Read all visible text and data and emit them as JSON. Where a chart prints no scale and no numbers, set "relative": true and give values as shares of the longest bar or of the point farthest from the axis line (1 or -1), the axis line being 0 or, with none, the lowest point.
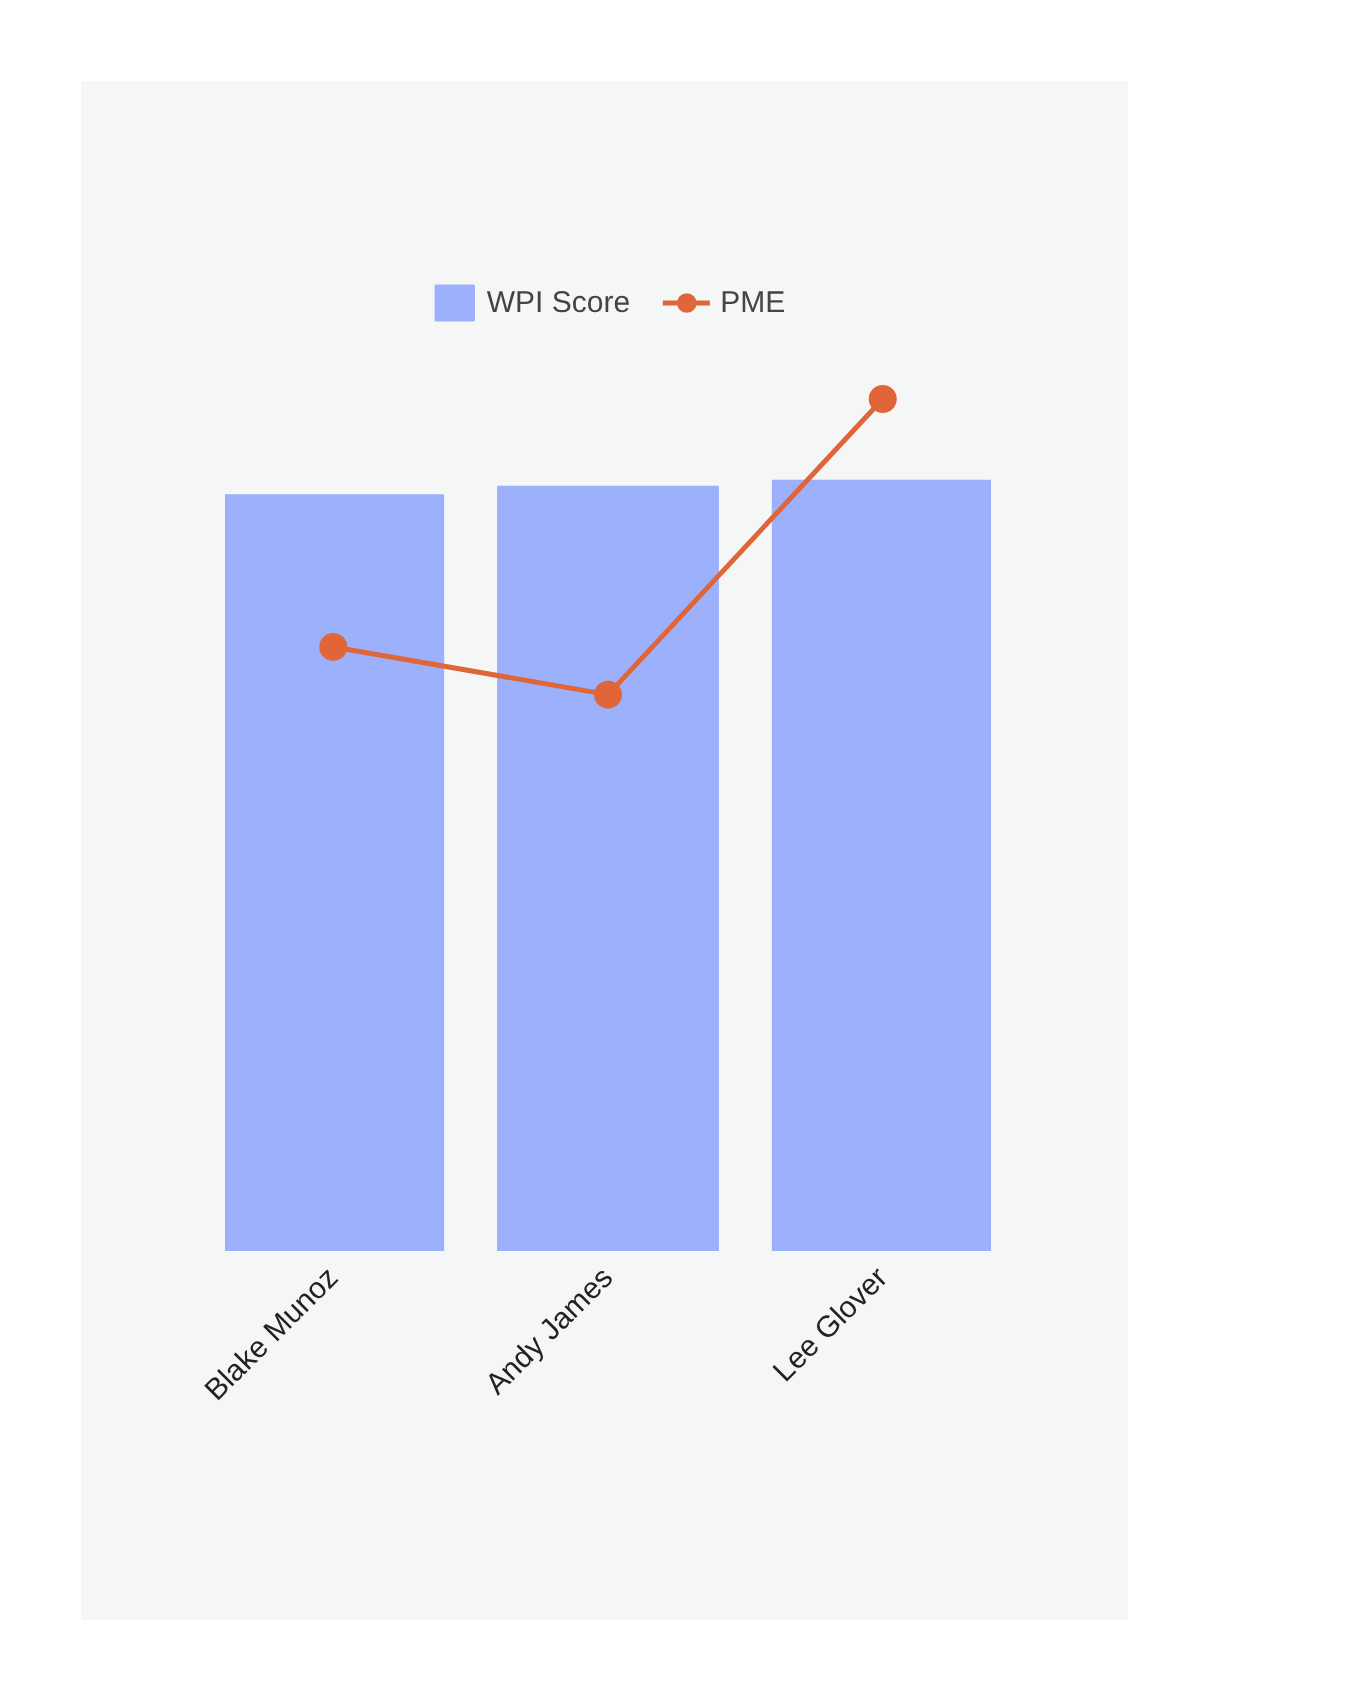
{
  "chart_data": {
    "type": "bar",
    "categories": [
      "Blake Munoz",
      "Andy James",
      "Lee Glover"
    ],
    "relative": true,
    "legend": "top",
    "grid": false,
    "series": [
      {
        "name": "WPI Score",
        "color": "#9db0fb",
        "values": [
          0.887,
          0.897,
          0.904
        ]
      },
      {
        "name": "PME",
        "type": "line",
        "color": "#e0663a",
        "marker": "circle",
        "values": [
          0.709,
          0.653,
          1.0
        ]
      }
    ]
  }
}
